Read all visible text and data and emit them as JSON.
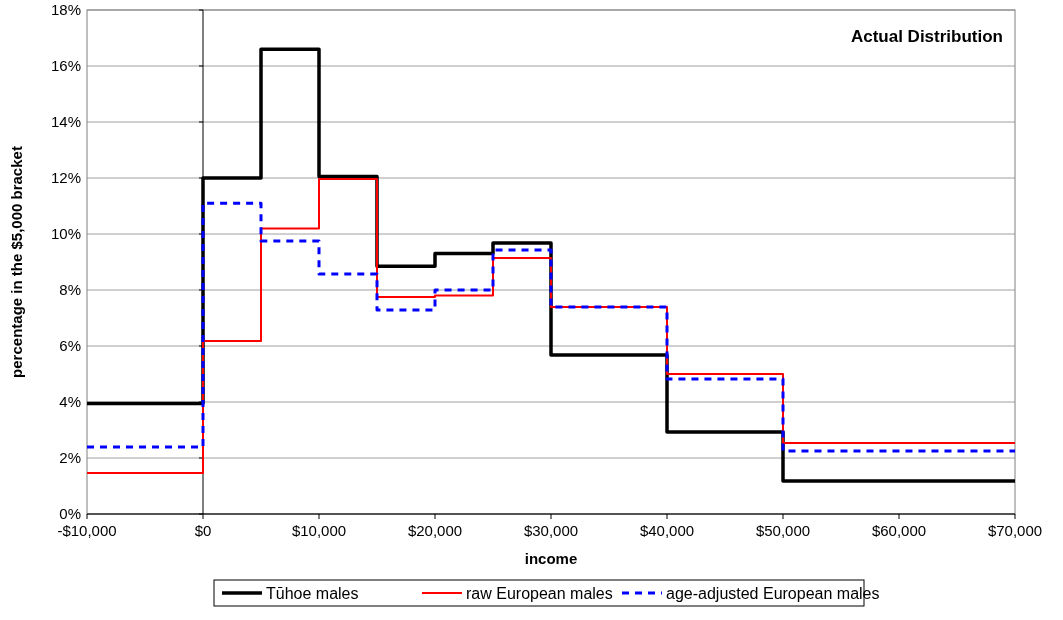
{
  "chart_data": {
    "type": "step",
    "xlabel": "income",
    "ylabel": "percentage in the $5,000 bracket",
    "annotations": [
      "Actual Distribution"
    ],
    "x": [
      -10000,
      0,
      5000,
      10000,
      15000,
      20000,
      25000,
      30000,
      40000,
      50000,
      70000
    ],
    "series": [
      {
        "name": "Tūhoe males",
        "color": "#000000",
        "values": [
          3.95,
          12.0,
          16.6,
          12.05,
          8.85,
          9.3,
          9.68,
          5.68,
          2.93,
          1.18,
          1.18
        ]
      },
      {
        "name": "raw European males",
        "color": "#ff0000",
        "values": [
          1.46,
          6.18,
          10.2,
          11.96,
          7.75,
          7.8,
          9.14,
          7.39,
          5.0,
          2.54,
          2.54
        ]
      },
      {
        "name": "age-adjusted European males",
        "color": "#0000ff",
        "line_style": "dashed",
        "values": [
          2.39,
          11.1,
          9.75,
          8.57,
          7.29,
          8.0,
          9.43,
          7.39,
          4.82,
          2.25,
          2.25
        ]
      }
    ],
    "xlim": [
      -10000,
      70000
    ],
    "xticks": [
      {
        "value": -10000,
        "label": "-$10,000"
      },
      {
        "value": 0,
        "label": "$0"
      },
      {
        "value": 10000,
        "label": "$10,000"
      },
      {
        "value": 20000,
        "label": "$20,000"
      },
      {
        "value": 30000,
        "label": "$30,000"
      },
      {
        "value": 40000,
        "label": "$40,000"
      },
      {
        "value": 50000,
        "label": "$50,000"
      },
      {
        "value": 60000,
        "label": "$60,000"
      },
      {
        "value": 70000,
        "label": "$70,000"
      }
    ],
    "ylim": [
      0,
      18
    ],
    "yticks": [
      {
        "value": 0,
        "label": "0%"
      },
      {
        "value": 2,
        "label": "2%"
      },
      {
        "value": 4,
        "label": "4%"
      },
      {
        "value": 6,
        "label": "6%"
      },
      {
        "value": 8,
        "label": "8%"
      },
      {
        "value": 10,
        "label": "10%"
      },
      {
        "value": 12,
        "label": "12%"
      },
      {
        "value": 14,
        "label": "14%"
      },
      {
        "value": 16,
        "label": "16%"
      },
      {
        "value": 18,
        "label": "18%"
      }
    ],
    "grid": "y",
    "legend": "bottom"
  }
}
